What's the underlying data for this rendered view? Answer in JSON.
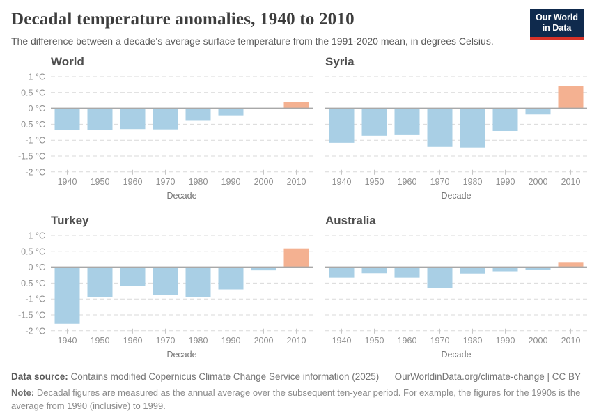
{
  "header": {
    "title": "Decadal temperature anomalies, 1940 to 2010",
    "subtitle": "The difference between a decade's average surface temperature from the 1991-2020 mean, in degrees Celsius.",
    "logo": {
      "line1": "Our World",
      "line2": "in Data",
      "bg_color": "#0f2a4d",
      "accent_color": "#d73228"
    }
  },
  "chart_data": [
    {
      "type": "bar",
      "title": "World",
      "categories": [
        "1940",
        "1950",
        "1960",
        "1970",
        "1980",
        "1990",
        "2000",
        "2010"
      ],
      "values": [
        -0.67,
        -0.67,
        -0.65,
        -0.66,
        -0.37,
        -0.22,
        -0.03,
        0.2
      ],
      "xlabel": "Decade",
      "ylabel": "",
      "ylim": [
        -2,
        1
      ],
      "yticks": [
        1,
        0.5,
        0,
        -0.5,
        -1,
        -1.5,
        -2
      ],
      "ytick_labels": [
        "1 °C",
        "0.5 °C",
        "0 °C",
        "-0.5 °C",
        "-1 °C",
        "-1.5 °C",
        "-2 °C"
      ],
      "grid": true,
      "show_y_labels": true
    },
    {
      "type": "bar",
      "title": "Syria",
      "categories": [
        "1940",
        "1950",
        "1960",
        "1970",
        "1980",
        "1990",
        "2000",
        "2010"
      ],
      "values": [
        -1.08,
        -0.86,
        -0.84,
        -1.21,
        -1.23,
        -0.71,
        -0.19,
        0.7
      ],
      "xlabel": "Decade",
      "ylabel": "",
      "ylim": [
        -2,
        1
      ],
      "yticks": [
        1,
        0.5,
        0,
        -0.5,
        -1,
        -1.5,
        -2
      ],
      "ytick_labels": [
        "1 °C",
        "0.5 °C",
        "0 °C",
        "-0.5 °C",
        "-1 °C",
        "-1.5 °C",
        "-2 °C"
      ],
      "grid": true,
      "show_y_labels": false
    },
    {
      "type": "bar",
      "title": "Turkey",
      "categories": [
        "1940",
        "1950",
        "1960",
        "1970",
        "1980",
        "1990",
        "2000",
        "2010"
      ],
      "values": [
        -1.78,
        -0.94,
        -0.6,
        -0.88,
        -0.95,
        -0.7,
        -0.1,
        0.59
      ],
      "xlabel": "Decade",
      "ylabel": "",
      "ylim": [
        -2,
        1
      ],
      "yticks": [
        1,
        0.5,
        0,
        -0.5,
        -1,
        -1.5,
        -2
      ],
      "ytick_labels": [
        "1 °C",
        "0.5 °C",
        "0 °C",
        "-0.5 °C",
        "-1 °C",
        "-1.5 °C",
        "-2 °C"
      ],
      "grid": true,
      "show_y_labels": true
    },
    {
      "type": "bar",
      "title": "Australia",
      "categories": [
        "1940",
        "1950",
        "1960",
        "1970",
        "1980",
        "1990",
        "2000",
        "2010"
      ],
      "values": [
        -0.33,
        -0.19,
        -0.33,
        -0.66,
        -0.2,
        -0.13,
        -0.08,
        0.16
      ],
      "xlabel": "Decade",
      "ylabel": "",
      "ylim": [
        -2,
        1
      ],
      "yticks": [
        1,
        0.5,
        0,
        -0.5,
        -1,
        -1.5,
        -2
      ],
      "ytick_labels": [
        "1 °C",
        "0.5 °C",
        "0 °C",
        "-0.5 °C",
        "-1 °C",
        "-1.5 °C",
        "-2 °C"
      ],
      "grid": true,
      "show_y_labels": false
    }
  ],
  "style": {
    "negative_bar_color": "#a9cfe5",
    "positive_bar_color": "#f4b191",
    "zero_line_color": "#a8a8a8",
    "grid_color": "#d9d9d9",
    "axis_text_color": "#8f8f8f",
    "axis_title_color": "#757575"
  },
  "footer": {
    "source_label": "Data source:",
    "source_text": "Contains modified Copernicus Climate Change Service information (2025)",
    "credit": "OurWorldinData.org/climate-change | CC BY",
    "note_label": "Note:",
    "note_text": "Decadal figures are measured as the annual average over the subsequent ten-year period. For example, the figures for the 1990s is the average from 1990 (inclusive) to 1999."
  }
}
